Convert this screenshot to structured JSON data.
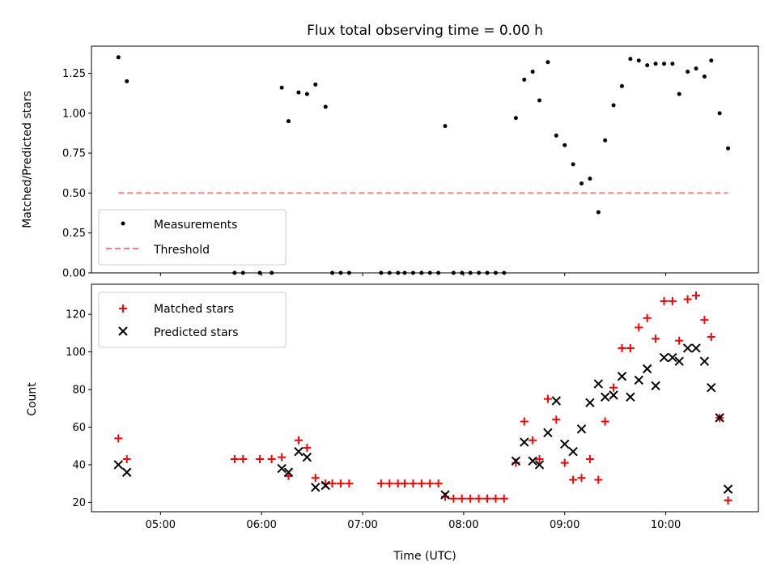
{
  "chart_data": [
    {
      "type": "scatter",
      "title": "Flux total observing time = 0.00 h",
      "ylabel": "Matched/Predicted stars",
      "xlabel": "",
      "xlim": [
        "04:19",
        "10:55"
      ],
      "ylim": [
        0,
        1.42
      ],
      "yticks": [
        "0.00",
        "0.25",
        "0.50",
        "0.75",
        "1.00",
        "1.25"
      ],
      "legend": {
        "position": "lower-left",
        "entries": [
          {
            "label": "Measurements",
            "marker": "dot",
            "color": "#000000"
          },
          {
            "label": "Threshold",
            "marker": "dashed-line",
            "color": "#ff7b7b"
          }
        ]
      },
      "series": [
        {
          "name": "Measurements",
          "points": [
            [
              "04:35",
              1.35
            ],
            [
              "04:40",
              1.2
            ],
            [
              "05:44",
              0.0
            ],
            [
              "05:49",
              0.0
            ],
            [
              "05:59",
              0.0
            ],
            [
              "06:06",
              0.0
            ],
            [
              "06:12",
              1.16
            ],
            [
              "06:16",
              0.95
            ],
            [
              "06:22",
              1.13
            ],
            [
              "06:27",
              1.12
            ],
            [
              "06:32",
              1.18
            ],
            [
              "06:38",
              1.04
            ],
            [
              "06:42",
              0.0
            ],
            [
              "06:47",
              0.0
            ],
            [
              "06:52",
              0.0
            ],
            [
              "07:11",
              0.0
            ],
            [
              "07:16",
              0.0
            ],
            [
              "07:21",
              0.0
            ],
            [
              "07:25",
              0.0
            ],
            [
              "07:30",
              0.0
            ],
            [
              "07:35",
              0.0
            ],
            [
              "07:40",
              0.0
            ],
            [
              "07:45",
              0.0
            ],
            [
              "07:49",
              0.92
            ],
            [
              "07:54",
              0.0
            ],
            [
              "07:59",
              0.0
            ],
            [
              "08:04",
              0.0
            ],
            [
              "08:09",
              0.0
            ],
            [
              "08:14",
              0.0
            ],
            [
              "08:19",
              0.0
            ],
            [
              "08:24",
              0.0
            ],
            [
              "08:31",
              0.97
            ],
            [
              "08:36",
              1.21
            ],
            [
              "08:41",
              1.26
            ],
            [
              "08:45",
              1.08
            ],
            [
              "08:50",
              1.32
            ],
            [
              "08:55",
              0.86
            ],
            [
              "09:00",
              0.8
            ],
            [
              "09:05",
              0.68
            ],
            [
              "09:10",
              0.56
            ],
            [
              "09:15",
              0.59
            ],
            [
              "09:20",
              0.38
            ],
            [
              "09:24",
              0.83
            ],
            [
              "09:29",
              1.05
            ],
            [
              "09:34",
              1.17
            ],
            [
              "09:39",
              1.34
            ],
            [
              "09:44",
              1.33
            ],
            [
              "09:49",
              1.3
            ],
            [
              "09:54",
              1.31
            ],
            [
              "09:59",
              1.31
            ],
            [
              "10:04",
              1.31
            ],
            [
              "10:08",
              1.12
            ],
            [
              "10:13",
              1.26
            ],
            [
              "10:18",
              1.28
            ],
            [
              "10:23",
              1.23
            ],
            [
              "10:27",
              1.33
            ],
            [
              "10:32",
              1.0
            ],
            [
              "10:37",
              0.78
            ]
          ]
        },
        {
          "name": "Threshold",
          "line": [
            [
              "04:35",
              0.5
            ],
            [
              "10:37",
              0.5
            ]
          ]
        }
      ]
    },
    {
      "type": "scatter",
      "title": "",
      "ylabel": "Count",
      "xlabel": "Time (UTC)",
      "xlim": [
        "04:19",
        "10:55"
      ],
      "ylim": [
        15,
        136
      ],
      "yticks": [
        "20",
        "40",
        "60",
        "80",
        "100",
        "120"
      ],
      "xticks": [
        "05:00",
        "06:00",
        "07:00",
        "08:00",
        "09:00",
        "10:00"
      ],
      "legend": {
        "position": "upper-left",
        "entries": [
          {
            "label": "Matched stars",
            "marker": "plus",
            "color": "#ff0000"
          },
          {
            "label": "Predicted stars",
            "marker": "x",
            "color": "#000000"
          }
        ]
      },
      "series": [
        {
          "name": "Matched stars",
          "points": [
            [
              "04:35",
              54
            ],
            [
              "04:40",
              43
            ],
            [
              "05:44",
              43
            ],
            [
              "05:49",
              43
            ],
            [
              "05:59",
              43
            ],
            [
              "06:06",
              43
            ],
            [
              "06:12",
              44
            ],
            [
              "06:16",
              34
            ],
            [
              "06:22",
              53
            ],
            [
              "06:27",
              49
            ],
            [
              "06:32",
              33
            ],
            [
              "06:38",
              30
            ],
            [
              "06:42",
              30
            ],
            [
              "06:47",
              30
            ],
            [
              "06:52",
              30
            ],
            [
              "07:11",
              30
            ],
            [
              "07:16",
              30
            ],
            [
              "07:21",
              30
            ],
            [
              "07:25",
              30
            ],
            [
              "07:30",
              30
            ],
            [
              "07:35",
              30
            ],
            [
              "07:40",
              30
            ],
            [
              "07:45",
              30
            ],
            [
              "07:49",
              23
            ],
            [
              "07:54",
              22
            ],
            [
              "07:59",
              22
            ],
            [
              "08:04",
              22
            ],
            [
              "08:09",
              22
            ],
            [
              "08:14",
              22
            ],
            [
              "08:19",
              22
            ],
            [
              "08:24",
              22
            ],
            [
              "08:31",
              41
            ],
            [
              "08:36",
              63
            ],
            [
              "08:41",
              53
            ],
            [
              "08:45",
              43
            ],
            [
              "08:50",
              75
            ],
            [
              "08:55",
              64
            ],
            [
              "09:00",
              41
            ],
            [
              "09:05",
              32
            ],
            [
              "09:10",
              33
            ],
            [
              "09:15",
              43
            ],
            [
              "09:20",
              32
            ],
            [
              "09:24",
              63
            ],
            [
              "09:29",
              81
            ],
            [
              "09:34",
              102
            ],
            [
              "09:39",
              102
            ],
            [
              "09:44",
              113
            ],
            [
              "09:49",
              118
            ],
            [
              "09:54",
              107
            ],
            [
              "09:59",
              127
            ],
            [
              "10:04",
              127
            ],
            [
              "10:08",
              106
            ],
            [
              "10:13",
              128
            ],
            [
              "10:18",
              130
            ],
            [
              "10:23",
              117
            ],
            [
              "10:27",
              108
            ],
            [
              "10:32",
              65
            ],
            [
              "10:37",
              21
            ]
          ]
        },
        {
          "name": "Predicted stars",
          "points": [
            [
              "04:35",
              40
            ],
            [
              "04:40",
              36
            ],
            [
              "06:12",
              38
            ],
            [
              "06:16",
              36
            ],
            [
              "06:22",
              47
            ],
            [
              "06:27",
              44
            ],
            [
              "06:32",
              28
            ],
            [
              "06:38",
              29
            ],
            [
              "07:49",
              24
            ],
            [
              "08:31",
              42
            ],
            [
              "08:36",
              52
            ],
            [
              "08:41",
              42
            ],
            [
              "08:45",
              40
            ],
            [
              "08:50",
              57
            ],
            [
              "08:55",
              74
            ],
            [
              "09:00",
              51
            ],
            [
              "09:05",
              47
            ],
            [
              "09:10",
              59
            ],
            [
              "09:15",
              73
            ],
            [
              "09:20",
              83
            ],
            [
              "09:24",
              76
            ],
            [
              "09:29",
              77
            ],
            [
              "09:34",
              87
            ],
            [
              "09:39",
              76
            ],
            [
              "09:44",
              85
            ],
            [
              "09:49",
              91
            ],
            [
              "09:54",
              82
            ],
            [
              "09:59",
              97
            ],
            [
              "10:04",
              97
            ],
            [
              "10:08",
              95
            ],
            [
              "10:13",
              102
            ],
            [
              "10:18",
              102
            ],
            [
              "10:23",
              95
            ],
            [
              "10:27",
              81
            ],
            [
              "10:32",
              65
            ],
            [
              "10:37",
              27
            ]
          ]
        }
      ]
    }
  ],
  "colors": {
    "measurement": "#000000",
    "threshold": "#ff7b7b",
    "matched": "#ff0000",
    "predicted": "#000000"
  }
}
